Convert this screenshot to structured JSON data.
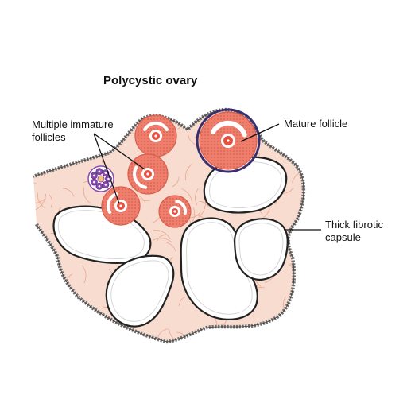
{
  "title": "Polycystic ovary",
  "labels": {
    "multiple_immature_line1": "Multiple immature",
    "multiple_immature_line2": "follicles",
    "mature_follicle": "Mature follicle",
    "capsule_line1": "Thick fibrotic",
    "capsule_line2": "capsule"
  },
  "colors": {
    "stroma": "#f7dccf",
    "stroma_fiber": "#e9a893",
    "follicle_fill": "#ef7f6d",
    "follicle_dot": "#d85f4f",
    "capsule": "#6f6f6f",
    "cyst_fill": "#ffffff",
    "cyst_outline": "#222222",
    "primordial": "#8a4bb0",
    "mature_rim": "#3a2f6e"
  }
}
